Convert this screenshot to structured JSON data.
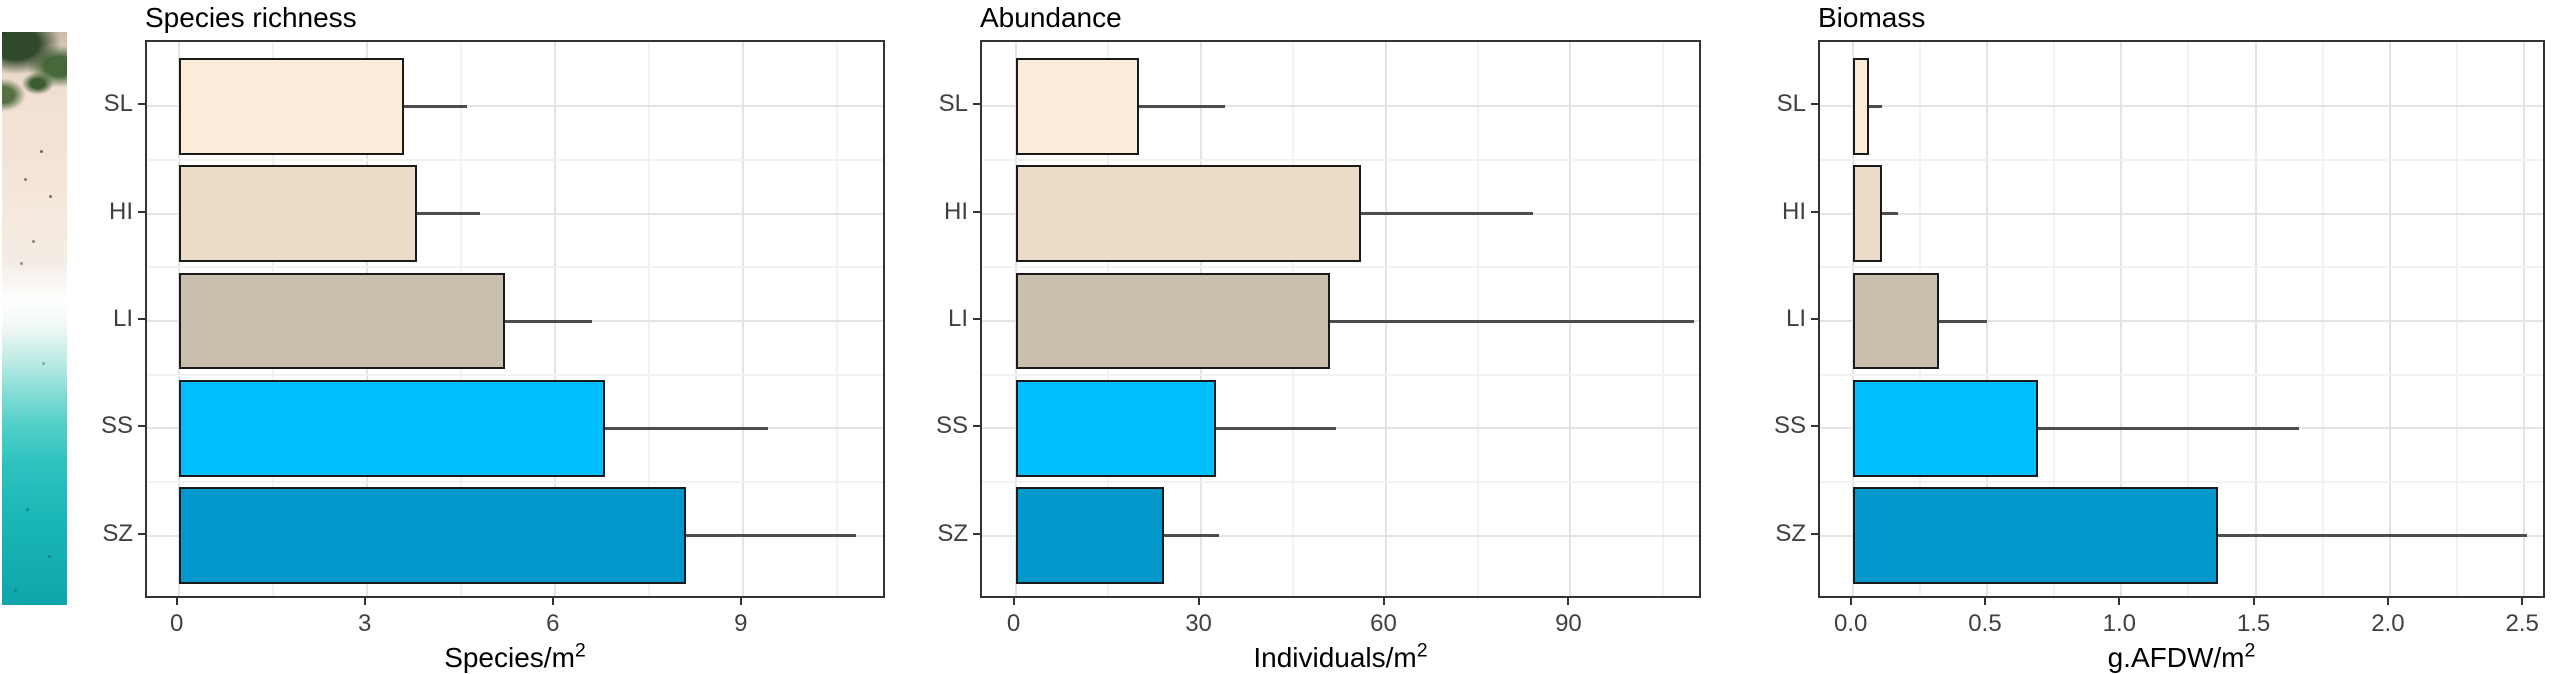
{
  "figure": {
    "photo": {
      "name": "beach-aerial-photo",
      "content": "aerial view of beach: vegetation, sand, surf, turquoise sea"
    }
  },
  "style": {
    "bar_fill_by_category": [
      "#FAECD9",
      "#EADCC6",
      "#CABEAC",
      "#00BFFF",
      "#0398CB"
    ],
    "bar_border": "#1A1A1A",
    "error_bar_color": "#4D4D4D",
    "panel_border": "#333333",
    "grid_major": "#E4E4E4",
    "grid_minor": "#F2F2F2",
    "tick_label_color": "#404040",
    "title_color": "#000000"
  },
  "chart_data": [
    {
      "type": "bar",
      "orientation": "horizontal",
      "title": "Species richness",
      "xlabel": "Species/m",
      "xlabel_superscript": "2",
      "categories": [
        "SL",
        "HI",
        "LI",
        "SS",
        "SZ"
      ],
      "values": [
        3.6,
        3.8,
        5.2,
        6.8,
        8.1
      ],
      "errors_upper": [
        4.6,
        4.8,
        6.6,
        9.4,
        10.8
      ],
      "x_ticks": [
        0,
        3,
        6,
        9
      ],
      "x_tick_labels": [
        "0",
        "3",
        "6",
        "9"
      ],
      "x_minor_gridlines": [
        1.5,
        4.5,
        7.5,
        10.5
      ],
      "xlim": [
        0,
        11.3
      ],
      "grid": true,
      "legend": "none"
    },
    {
      "type": "bar",
      "orientation": "horizontal",
      "title": "Abundance",
      "xlabel": "Individuals/m",
      "xlabel_superscript": "2",
      "categories": [
        "SL",
        "HI",
        "LI",
        "SS",
        "SZ"
      ],
      "values": [
        20,
        56,
        51,
        32.5,
        24
      ],
      "errors_upper": [
        34,
        84,
        110,
        52,
        33
      ],
      "x_ticks": [
        0,
        30,
        60,
        90
      ],
      "x_tick_labels": [
        "0",
        "30",
        "60",
        "90"
      ],
      "x_minor_gridlines": [
        15,
        45,
        75,
        105
      ],
      "xlim": [
        0,
        111.5
      ],
      "grid": true,
      "legend": "none"
    },
    {
      "type": "bar",
      "orientation": "horizontal",
      "title": "Biomass",
      "xlabel": "g.AFDW/m",
      "xlabel_superscript": "2",
      "categories": [
        "SL",
        "HI",
        "LI",
        "SS",
        "SZ"
      ],
      "values": [
        0.06,
        0.11,
        0.32,
        0.69,
        1.36
      ],
      "errors_upper": [
        0.11,
        0.17,
        0.5,
        1.66,
        2.51
      ],
      "x_ticks": [
        0,
        0.5,
        1,
        1.5,
        2,
        2.5
      ],
      "x_tick_labels": [
        "0.0",
        "0.5",
        "1.0",
        "1.5",
        "2.0",
        "2.5"
      ],
      "x_minor_gridlines": [
        0.25,
        0.75,
        1.25,
        1.75,
        2.25
      ],
      "xlim": [
        0,
        2.585
      ],
      "grid": true,
      "legend": "none"
    }
  ]
}
